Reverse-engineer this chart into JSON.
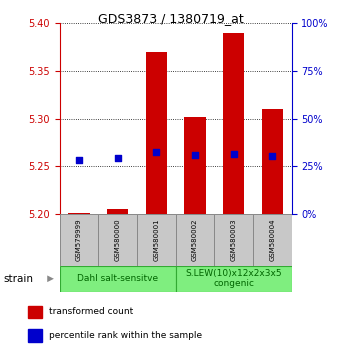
{
  "title": "GDS3873 / 1380719_at",
  "samples": [
    "GSM579999",
    "GSM580000",
    "GSM580001",
    "GSM580002",
    "GSM580003",
    "GSM580004"
  ],
  "red_values": [
    5.201,
    5.205,
    5.37,
    5.302,
    5.39,
    5.31
  ],
  "blue_values": [
    5.257,
    5.259,
    5.265,
    5.262,
    5.263,
    5.261
  ],
  "red_base": 5.2,
  "ylim_left": [
    5.2,
    5.4
  ],
  "ylim_right": [
    0,
    100
  ],
  "yticks_left": [
    5.2,
    5.25,
    5.3,
    5.35,
    5.4
  ],
  "yticks_right": [
    0,
    25,
    50,
    75,
    100
  ],
  "groups": [
    {
      "label": "Dahl salt-sensitve",
      "color": "#7FEE7F",
      "start": 0,
      "end": 2
    },
    {
      "label": "S.LEW(10)x12x2x3x5\ncongenic",
      "color": "#7FEE7F",
      "start": 3,
      "end": 5
    }
  ],
  "strain_label": "strain",
  "legend_red": "transformed count",
  "legend_blue": "percentile rank within the sample",
  "bar_color": "#CC0000",
  "dot_color": "#0000CC",
  "bar_width": 0.55,
  "dot_size": 20,
  "sample_box_color": "#C8C8C8",
  "right_axis_color": "#0000CC",
  "left_axis_color": "#CC0000",
  "title_fontsize": 9,
  "tick_fontsize": 7,
  "sample_fontsize": 5,
  "group_fontsize": 6.5,
  "legend_fontsize": 6.5
}
